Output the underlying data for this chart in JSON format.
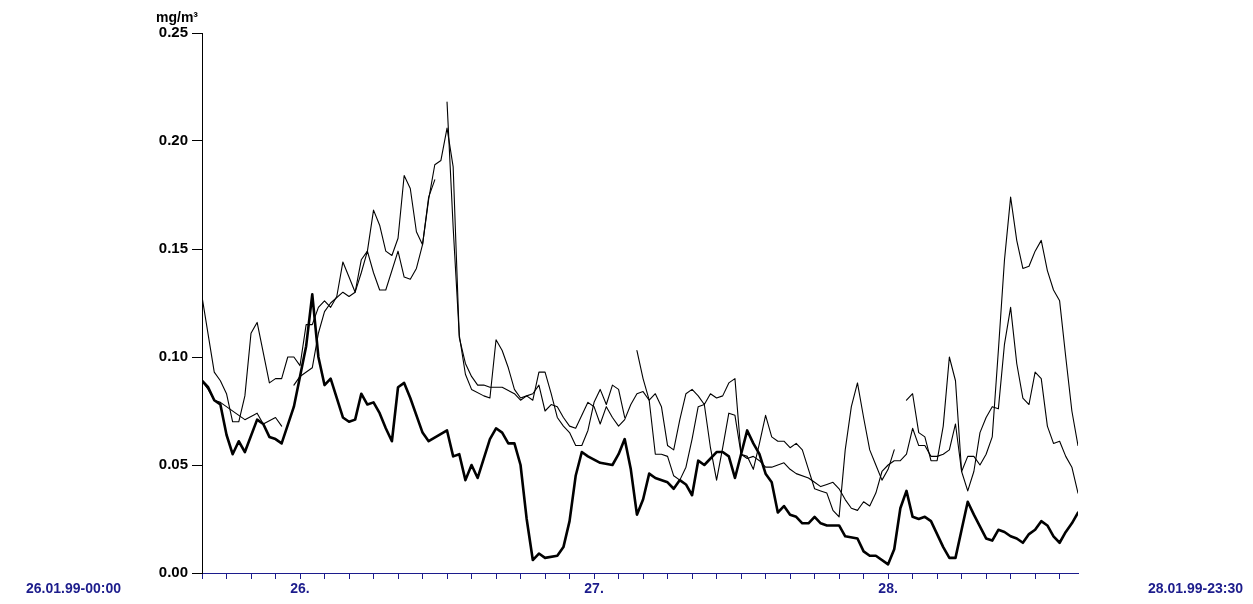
{
  "chart_data": {
    "type": "line",
    "ylabel": "mg/m³",
    "xlim": [
      "--01-26T00:00",
      "--01-28T23:30"
    ],
    "ylim": [
      0,
      0.25
    ],
    "xticks": [
      {
        "value": "--01-26T00:00",
        "label": null
      },
      {
        "value": "--01-26T02:00",
        "label": null
      },
      {
        "value": "--01-26T04:00",
        "label": null
      },
      {
        "value": "--01-26T06:00",
        "label": null
      },
      {
        "value": "--01-26T08:00",
        "label": "26."
      },
      {
        "value": "--01-26T10:00",
        "label": null
      },
      {
        "value": "--01-26T12:00",
        "label": null
      },
      {
        "value": "--01-26T14:00",
        "label": null
      },
      {
        "value": "--01-26T16:00",
        "label": null
      },
      {
        "value": "--01-26T18:00",
        "label": null
      },
      {
        "value": "--01-26T20:00",
        "label": null
      },
      {
        "value": "--01-26T22:00",
        "label": null
      },
      {
        "value": "--01-27T00:00",
        "label": null
      },
      {
        "value": "--01-27T02:00",
        "label": null
      },
      {
        "value": "--01-27T04:00",
        "label": null
      },
      {
        "value": "--01-27T06:00",
        "label": null
      },
      {
        "value": "--01-27T08:00",
        "label": "27."
      },
      {
        "value": "--01-27T10:00",
        "label": null
      },
      {
        "value": "--01-27T12:00",
        "label": null
      },
      {
        "value": "--01-27T14:00",
        "label": null
      },
      {
        "value": "--01-27T16:00",
        "label": null
      },
      {
        "value": "--01-27T18:00",
        "label": null
      },
      {
        "value": "--01-27T20:00",
        "label": null
      },
      {
        "value": "--01-27T22:00",
        "label": null
      },
      {
        "value": "--01-28T00:00",
        "label": null
      },
      {
        "value": "--01-28T02:00",
        "label": null
      },
      {
        "value": "--01-28T04:00",
        "label": null
      },
      {
        "value": "--01-28T06:00",
        "label": null
      },
      {
        "value": "--01-28T08:00",
        "label": "28."
      },
      {
        "value": "--01-28T10:00",
        "label": null
      },
      {
        "value": "--01-28T12:00",
        "label": null
      },
      {
        "value": "--01-28T14:00",
        "label": null
      },
      {
        "value": "--01-28T16:00",
        "label": null
      },
      {
        "value": "--01-28T18:00",
        "label": null
      },
      {
        "value": "--01-28T20:00",
        "label": null
      },
      {
        "value": "--01-28T22:00",
        "label": null
      }
    ],
    "yticks": [
      {
        "value": 0,
        "label": "0.00"
      },
      {
        "value": 0.05,
        "label": "0.05"
      },
      {
        "value": 0.1,
        "label": "0.10"
      },
      {
        "value": 0.15,
        "label": "0.15"
      },
      {
        "value": 0.2,
        "label": "0.20"
      },
      {
        "value": 0.25,
        "label": "0.25"
      }
    ],
    "annotations": [
      "26.01.99-00:00",
      "28.01.99-23:30"
    ],
    "grid": false,
    "legend": false,
    "marker": "none",
    "line_style": "solid",
    "series": [
      {
        "color": "#000000",
        "x": [
          "--01-26T00:00",
          "--01-26T00:30",
          "--01-26T01:00",
          "--01-26T01:30",
          "--01-26T02:00",
          "--01-26T02:30",
          "--01-26T03:00",
          "--01-26T03:30",
          "--01-26T04:30",
          "--01-26T05:00",
          "--01-26T05:30",
          "--01-26T06:00",
          "--01-26T06:30",
          "--01-26T07:30",
          "--01-26T08:30",
          "--01-26T09:00",
          "--01-26T09:30",
          "--01-26T10:00",
          "--01-26T10:30",
          "--01-26T11:30",
          "--01-26T12:00",
          "--01-26T12:30",
          "--01-26T13:00",
          "--01-26T13:30",
          "--01-26T14:00",
          "--01-26T14:30",
          "--01-26T15:00",
          "--01-26T15:30",
          "--01-26T16:00",
          "--01-26T16:30",
          "--01-26T17:00",
          "--01-26T18:00",
          "--01-26T18:30",
          "--01-26T20:00",
          "--01-26T20:30",
          "--01-26T21:00",
          "--01-26T21:30",
          "--01-26T22:00",
          "--01-26T22:30",
          "--01-26T23:30",
          "--01-27T00:00",
          "--01-27T00:30",
          "--01-27T01:00",
          "--01-27T01:30",
          "--01-27T02:00",
          "--01-27T02:30",
          "--01-27T03:00",
          "--01-27T03:30",
          "--01-27T04:00",
          "--01-27T05:00",
          "--01-27T05:30",
          "--01-27T06:00",
          "--01-27T06:30",
          "--01-27T07:00",
          "--01-27T07:30",
          "--01-27T08:30",
          "--01-27T09:30",
          "--01-27T10:00",
          "--01-27T10:30",
          "--01-27T11:00",
          "--01-27T11:30",
          "--01-27T12:00",
          "--01-27T12:30",
          "--01-27T13:00",
          "--01-27T14:00",
          "--01-27T14:30",
          "--01-27T15:00",
          "--01-27T15:30",
          "--01-27T16:00",
          "--01-27T16:30",
          "--01-27T17:00",
          "--01-27T18:00",
          "--01-27T18:30",
          "--01-27T19:00",
          "--01-27T19:30",
          "--01-27T20:00",
          "--01-27T20:30",
          "--01-27T21:00",
          "--01-27T21:30",
          "--01-27T22:00",
          "--01-27T22:30",
          "--01-27T23:00",
          "--01-27T23:30",
          "--01-28T00:00",
          "--01-28T00:30",
          "--01-28T01:00",
          "--01-28T01:30",
          "--01-28T02:00",
          "--01-28T02:30",
          "--01-28T03:00",
          "--01-28T04:00",
          "--01-28T04:30",
          "--01-28T05:30",
          "--01-28T06:00",
          "--01-28T06:30",
          "--01-28T07:00",
          "--01-28T08:00",
          "--01-28T08:30",
          "--01-28T09:00",
          "--01-28T09:30",
          "--01-28T10:00",
          "--01-28T10:30",
          "--01-28T11:00",
          "--01-28T11:30",
          "--01-28T12:30",
          "--01-28T13:00",
          "--01-28T13:30",
          "--01-28T14:00",
          "--01-28T14:30",
          "--01-28T15:00",
          "--01-28T16:00",
          "--01-28T16:30",
          "--01-28T17:00",
          "--01-28T17:30",
          "--01-28T18:00",
          "--01-28T18:30",
          "--01-28T19:00",
          "--01-28T19:30",
          "--01-28T20:00",
          "--01-28T20:30",
          "--01-28T21:00",
          "--01-28T21:30",
          "--01-28T22:00",
          "--01-28T22:30",
          "--01-28T23:00",
          "--01-28T23:30"
        ],
        "values": [
          0.089,
          0.086,
          0.08,
          0.078,
          0.064,
          0.055,
          0.061,
          0.056,
          0.071,
          0.069,
          0.063,
          0.062,
          0.06,
          0.077,
          0.105,
          0.129,
          0.1,
          0.087,
          0.09,
          0.072,
          0.07,
          0.071,
          0.083,
          0.078,
          0.079,
          0.074,
          0.067,
          0.061,
          0.086,
          0.088,
          0.081,
          0.065,
          0.061,
          0.066,
          0.054,
          0.055,
          0.043,
          0.05,
          0.044,
          0.062,
          0.067,
          0.065,
          0.06,
          0.06,
          0.05,
          0.025,
          0.006,
          0.009,
          0.007,
          0.008,
          0.012,
          0.024,
          0.045,
          0.056,
          0.054,
          0.051,
          0.05,
          0.055,
          0.062,
          0.048,
          0.027,
          0.034,
          0.046,
          0.044,
          0.042,
          0.039,
          0.043,
          0.041,
          0.036,
          0.052,
          0.05,
          0.056,
          0.056,
          0.054,
          0.044,
          0.055,
          0.066,
          0.06,
          0.055,
          0.046,
          0.042,
          0.028,
          0.031,
          0.027,
          0.026,
          0.023,
          0.023,
          0.026,
          0.023,
          0.022,
          0.022,
          0.017,
          0.016,
          0.01,
          0.008,
          0.008,
          0.004,
          0.011,
          0.03,
          0.038,
          0.026,
          0.025,
          0.026,
          0.024,
          0.012,
          0.007,
          0.007,
          0.02,
          0.033,
          0.027,
          0.016,
          0.015,
          0.02,
          0.019,
          0.017,
          0.016,
          0.014,
          0.018,
          0.02,
          0.024,
          0.022,
          0.017,
          0.014,
          0.019,
          0.023,
          0.028
        ]
      },
      {
        "color": "#000000",
        "x": [
          "--01-26T00:00",
          "--01-26T01:00",
          "--01-26T01:30",
          "--01-26T02:00",
          "--01-26T02:30",
          "--01-26T03:00",
          "--01-26T03:30",
          "--01-26T04:00",
          "--01-26T04:30",
          "--01-26T05:30",
          "--01-26T06:00",
          "--01-26T06:30",
          "--01-26T07:00",
          "--01-26T07:30",
          "--01-26T08:00",
          "--01-26T08:30",
          "--01-26T09:00",
          "--01-26T09:30",
          "--01-26T10:00",
          "--01-26T10:30",
          "--01-26T11:00",
          "--01-26T11:30",
          "--01-26T12:00",
          "--01-26T12:30",
          "--01-26T13:00",
          "--01-26T13:30",
          "--01-26T14:00",
          "--01-26T14:30",
          "--01-26T15:00",
          "--01-26T15:30",
          "--01-26T16:00",
          "--01-26T16:30",
          "--01-26T17:00",
          "--01-26T17:30",
          "--01-26T18:00",
          "--01-26T18:30",
          "--01-26T19:00",
          "--01-26T19:30",
          "--01-26T20:00",
          "--01-26T20:30",
          "--01-26T21:00",
          "--01-26T21:30",
          "--01-26T22:00",
          "--01-26T22:30",
          "--01-26T23:00",
          "--01-26T23:30",
          "--01-27T00:00",
          "--01-27T00:30",
          "--01-27T01:30",
          "--01-27T02:00",
          "--01-27T02:30",
          "--01-27T03:00",
          "--01-27T03:30",
          "--01-27T04:00",
          "--01-27T04:30",
          "--01-27T05:00",
          "--01-27T05:30",
          "--01-27T06:00",
          "--01-27T06:30",
          "--01-27T07:00",
          "--01-27T07:30",
          "--01-27T08:00",
          "--01-27T08:30",
          "--01-27T09:00",
          "--01-27T09:30",
          "--01-27T10:00",
          "--01-27T10:30",
          "--01-27T11:00",
          "--01-27T11:30",
          "--01-27T12:00",
          "--01-27T12:30",
          "--01-27T13:00",
          "--01-27T13:30",
          "--01-27T14:00",
          "--01-27T14:30",
          "--01-27T15:00",
          "--01-27T15:30",
          "--01-27T16:00",
          "--01-27T16:30",
          "--01-27T17:00",
          "--01-27T17:30",
          "--01-27T18:00",
          "--01-27T18:30",
          "--01-27T19:00",
          "--01-27T19:30",
          "--01-27T20:00",
          "--01-27T20:30",
          "--01-27T21:00",
          "--01-27T21:30",
          "--01-27T22:00",
          "--01-27T22:30",
          "--01-27T23:00",
          "--01-27T23:30",
          "--01-28T00:00",
          "--01-28T00:30",
          "--01-28T01:30",
          "--01-28T02:00",
          "--01-28T02:30",
          "--01-28T03:00",
          "--01-28T03:30",
          "--01-28T04:00",
          "--01-28T04:30",
          "--01-28T05:00",
          "--01-28T05:30",
          "--01-28T06:00",
          "--01-28T06:30",
          "--01-28T07:00",
          "--01-28T07:30",
          "--01-28T08:00",
          "--01-28T08:30",
          "--01-28T09:00",
          "--01-28T09:30",
          "--01-28T10:00",
          "--01-28T10:30",
          "--01-28T11:00",
          "--01-28T11:30",
          "--01-28T12:00",
          "--01-28T12:30",
          "--01-28T13:00",
          "--01-28T13:30",
          "--01-28T14:00",
          "--01-28T14:30",
          "--01-28T15:00",
          "--01-28T15:30",
          "--01-28T16:00",
          "--01-28T16:30",
          "--01-28T17:00",
          "--01-28T17:30",
          "--01-28T18:00",
          "--01-28T18:30",
          "--01-28T19:00",
          "--01-28T19:30",
          "--01-28T20:00",
          "--01-28T20:30",
          "--01-28T21:00",
          "--01-28T21:30",
          "--01-28T22:00",
          "--01-28T22:30",
          "--01-28T23:00",
          "--01-28T23:30"
        ],
        "values": [
          0.128,
          0.093,
          0.089,
          0.083,
          0.07,
          0.07,
          0.082,
          0.111,
          0.116,
          0.088,
          0.09,
          0.09,
          0.1,
          0.1,
          0.096,
          0.115,
          0.115,
          0.123,
          0.126,
          0.123,
          0.128,
          0.144,
          0.137,
          0.13,
          0.145,
          0.149,
          0.168,
          0.161,
          0.149,
          0.147,
          0.155,
          0.184,
          0.178,
          0.158,
          0.152,
          0.173,
          0.189,
          0.191,
          0.206,
          0.188,
          0.109,
          0.097,
          0.091,
          0.087,
          0.087,
          0.086,
          0.086,
          0.086,
          0.083,
          0.08,
          0.082,
          0.083,
          0.087,
          0.075,
          0.078,
          0.077,
          0.072,
          0.068,
          0.067,
          0.073,
          0.079,
          0.077,
          0.069,
          0.077,
          0.072,
          0.068,
          0.071,
          0.078,
          0.083,
          0.084,
          0.08,
          0.083,
          0.077,
          0.059,
          0.057,
          0.071,
          0.083,
          0.085,
          0.082,
          0.078,
          0.083,
          0.081,
          0.082,
          0.088,
          0.09,
          0.055,
          0.053,
          0.054,
          0.052,
          0.049,
          0.049,
          0.05,
          0.051,
          0.048,
          0.046,
          0.044,
          0.042,
          0.04,
          0.041,
          0.042,
          0.039,
          0.034,
          0.03,
          0.029,
          0.033,
          0.031,
          0.037,
          0.047,
          0.05,
          0.052,
          0.052,
          0.055,
          0.067,
          0.059,
          0.059,
          0.054,
          0.054,
          0.055,
          0.057,
          0.069,
          0.047,
          0.038,
          0.047,
          0.065,
          0.072,
          0.077,
          0.076,
          0.106,
          0.123,
          0.097,
          0.081,
          0.078,
          0.093,
          0.09,
          0.068,
          0.06,
          0.061,
          0.054,
          0.049,
          0.037
        ]
      },
      {
        "color": "#000000",
        "x": [
          "--01-26T00:00",
          "--01-26T00:30",
          "--01-26T01:00",
          "--01-26T01:30",
          "--01-26T03:30",
          "--01-26T04:30",
          "--01-26T05:00",
          "--01-26T06:00",
          "--01-26T06:30",
          "--01-26T07:00",
          "--01-26T07:30",
          "--01-26T08:00",
          "--01-26T09:00",
          "--01-26T09:30",
          "--01-26T10:00",
          "--01-26T10:30",
          "--01-26T11:30",
          "--01-26T12:00",
          "--01-26T12:30",
          "--01-26T13:00",
          "--01-26T13:30",
          "--01-26T14:00",
          "--01-26T14:30",
          "--01-26T15:00",
          "--01-26T16:00",
          "--01-26T16:30",
          "--01-26T17:00",
          "--01-26T17:30",
          "--01-26T18:00",
          "--01-26T18:30",
          "--01-26T19:00",
          "--01-26T19:30",
          "--01-26T20:00",
          "--01-26T20:30",
          "--01-26T21:00",
          "--01-26T21:30",
          "--01-26T22:00",
          "--01-26T23:00",
          "--01-26T23:30",
          "--01-27T00:00",
          "--01-27T00:30",
          "--01-27T01:00",
          "--01-27T01:30",
          "--01-27T02:00",
          "--01-27T02:30",
          "--01-27T03:00",
          "--01-27T03:30",
          "--01-27T04:00",
          "--01-27T04:30",
          "--01-27T05:00",
          "--01-27T05:30",
          "--01-27T06:00",
          "--01-27T06:30",
          "--01-27T07:00",
          "--01-27T07:30",
          "--01-27T08:00",
          "--01-27T08:30",
          "--01-27T09:00",
          "--01-27T09:30",
          "--01-27T10:00",
          "--01-27T10:30",
          "--01-27T11:00",
          "--01-27T11:30",
          "--01-27T12:00",
          "--01-27T12:30",
          "--01-27T13:00",
          "--01-27T13:30",
          "--01-27T14:00",
          "--01-27T14:30",
          "--01-27T15:00",
          "--01-27T15:30",
          "--01-27T16:00",
          "--01-27T16:30",
          "--01-27T17:00",
          "--01-27T17:30",
          "--01-27T18:00",
          "--01-27T18:30",
          "--01-27T19:00",
          "--01-27T19:30",
          "--01-27T20:00",
          "--01-27T20:30",
          "--01-27T21:00",
          "--01-27T21:30",
          "--01-27T22:00",
          "--01-27T22:30",
          "--01-27T23:00",
          "--01-27T23:30",
          "--01-28T00:00",
          "--01-28T00:30",
          "--01-28T01:00",
          "--01-28T01:30",
          "--01-28T02:00",
          "--01-28T02:30",
          "--01-28T03:00",
          "--01-28T03:30",
          "--01-28T04:00",
          "--01-28T04:30",
          "--01-28T05:00",
          "--01-28T05:30",
          "--01-28T06:00",
          "--01-28T06:30",
          "--01-28T07:00",
          "--01-28T07:30",
          "--01-28T08:00",
          "--01-28T08:30",
          "--01-28T09:00",
          "--01-28T09:30",
          "--01-28T10:00",
          "--01-28T10:30",
          "--01-28T11:00",
          "--01-28T11:30",
          "--01-28T12:00",
          "--01-28T12:30",
          "--01-28T13:00",
          "--01-28T13:30",
          "--01-28T14:00",
          "--01-28T14:30",
          "--01-28T15:00",
          "--01-28T15:30",
          "--01-28T16:00",
          "--01-28T16:30",
          "--01-28T17:00",
          "--01-28T17:30",
          "--01-28T18:00",
          "--01-28T18:30",
          "--01-28T19:00",
          "--01-28T19:30",
          "--01-28T20:00",
          "--01-28T20:30",
          "--01-28T21:00",
          "--01-28T21:30",
          "--01-28T22:00",
          "--01-28T22:30",
          "--01-28T23:00",
          "--01-28T23:30"
        ],
        "values": [
          0.089,
          0.085,
          0.08,
          0.079,
          0.071,
          0.074,
          0.069,
          0.072,
          0.068,
          null,
          0.087,
          0.091,
          0.095,
          0.111,
          0.121,
          0.125,
          0.13,
          0.128,
          0.13,
          0.139,
          0.149,
          0.139,
          0.131,
          0.131,
          0.149,
          0.137,
          0.136,
          0.141,
          0.152,
          0.174,
          0.182,
          null,
          0.218,
          0.16,
          0.11,
          0.092,
          0.085,
          0.082,
          0.081,
          0.108,
          0.103,
          0.095,
          0.085,
          0.081,
          0.082,
          0.08,
          0.093,
          0.093,
          0.083,
          0.072,
          0.068,
          0.065,
          0.059,
          0.059,
          0.066,
          0.079,
          0.085,
          0.078,
          0.087,
          0.085,
          0.072,
          null,
          0.103,
          0.09,
          0.08,
          0.055,
          0.055,
          0.054,
          0.045,
          0.043,
          0.049,
          0.062,
          0.077,
          0.078,
          0.058,
          0.043,
          0.058,
          0.074,
          0.073,
          0.055,
          0.054,
          0.048,
          0.06,
          0.073,
          0.063,
          0.061,
          0.061,
          0.058,
          0.06,
          0.057,
          0.048,
          0.039,
          0.038,
          0.037,
          0.029,
          0.026,
          0.057,
          0.077,
          0.088,
          0.072,
          0.057,
          0.05,
          0.043,
          0.048,
          0.057,
          null,
          0.08,
          0.083,
          0.065,
          0.063,
          0.052,
          0.052,
          0.068,
          0.1,
          0.089,
          0.047,
          0.054,
          0.054,
          0.05,
          0.055,
          0.063,
          0.103,
          0.145,
          0.174,
          0.154,
          0.141,
          0.142,
          0.149,
          0.154,
          0.14,
          0.131,
          0.126,
          0.1,
          0.075,
          0.059
        ]
      }
    ]
  }
}
